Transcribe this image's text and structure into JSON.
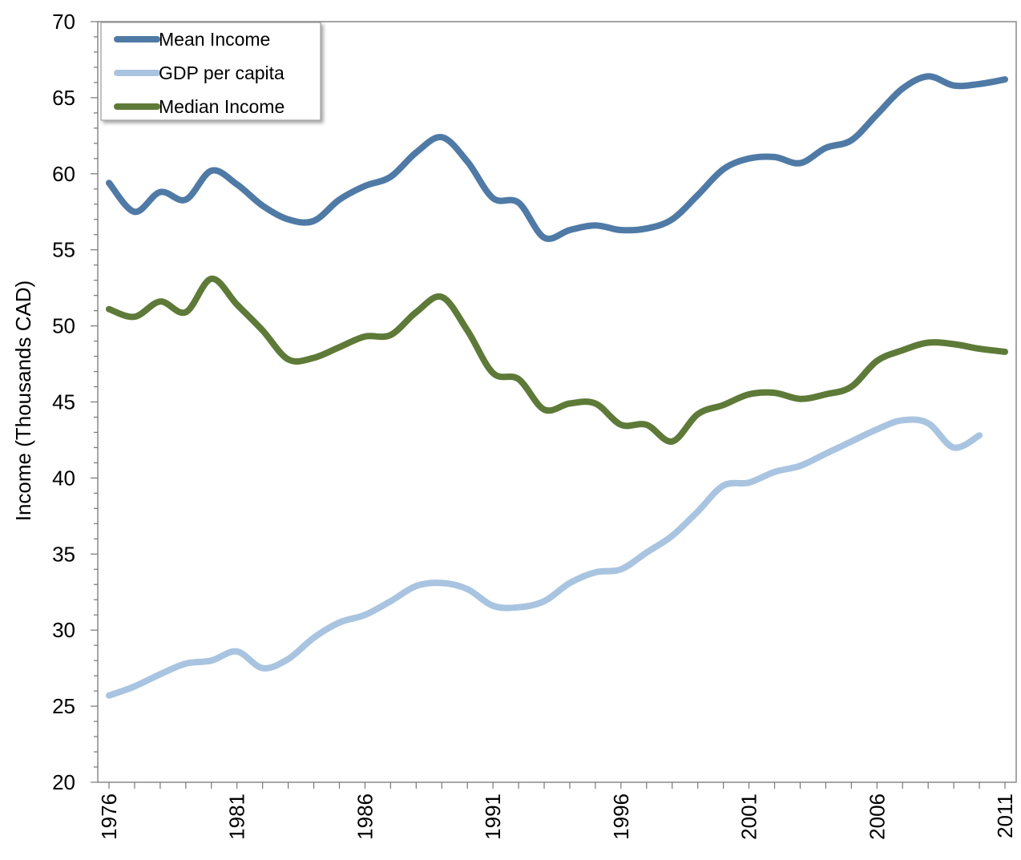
{
  "chart_data": {
    "type": "line",
    "title": "",
    "xlabel": "",
    "ylabel": "Income (Thousands CAD)",
    "ylim": [
      20,
      70
    ],
    "xlim": [
      1976,
      2011
    ],
    "x_ticks": [
      "1976",
      "1981",
      "1986",
      "1991",
      "1996",
      "2001",
      "2006",
      "2011"
    ],
    "y_ticks": [
      "20",
      "25",
      "30",
      "35",
      "40",
      "45",
      "50",
      "55",
      "60",
      "65",
      "70"
    ],
    "grid": false,
    "legend_position": "top-left",
    "x": [
      1976,
      1977,
      1978,
      1979,
      1980,
      1981,
      1982,
      1983,
      1984,
      1985,
      1986,
      1987,
      1988,
      1989,
      1990,
      1991,
      1992,
      1993,
      1994,
      1995,
      1996,
      1997,
      1998,
      1999,
      2000,
      2001,
      2002,
      2003,
      2004,
      2005,
      2006,
      2007,
      2008,
      2009,
      2010,
      2011
    ],
    "series": [
      {
        "name": "Mean Income",
        "color": "#4f7aa6",
        "values": [
          59.4,
          57.5,
          58.8,
          58.3,
          60.2,
          59.3,
          57.9,
          57.0,
          56.9,
          58.3,
          59.2,
          59.8,
          61.4,
          62.4,
          60.8,
          58.4,
          58.1,
          55.8,
          56.3,
          56.6,
          56.3,
          56.4,
          57.0,
          58.6,
          60.3,
          61.0,
          61.1,
          60.7,
          61.7,
          62.2,
          63.9,
          65.6,
          66.4,
          65.8,
          65.9,
          66.2
        ]
      },
      {
        "name": "GDP per capita",
        "color": "#a9c4e0",
        "values": [
          25.7,
          26.3,
          27.1,
          27.8,
          28.0,
          28.6,
          27.5,
          28.1,
          29.5,
          30.5,
          31.0,
          31.9,
          32.9,
          33.1,
          32.7,
          31.6,
          31.5,
          31.9,
          33.1,
          33.8,
          34.0,
          35.1,
          36.2,
          37.8,
          39.5,
          39.7,
          40.4,
          40.8,
          41.6,
          42.4,
          43.2,
          43.8,
          43.6,
          42.0,
          42.8,
          null
        ]
      },
      {
        "name": "Median Income",
        "color": "#5e7a38",
        "values": [
          51.1,
          50.6,
          51.6,
          50.9,
          53.1,
          51.4,
          49.7,
          47.8,
          47.9,
          48.6,
          49.3,
          49.4,
          50.9,
          51.9,
          49.7,
          46.9,
          46.5,
          44.5,
          44.9,
          44.9,
          43.5,
          43.5,
          42.4,
          44.2,
          44.8,
          45.5,
          45.6,
          45.2,
          45.5,
          46.0,
          47.7,
          48.4,
          48.9,
          48.8,
          48.5,
          48.3
        ]
      }
    ]
  }
}
